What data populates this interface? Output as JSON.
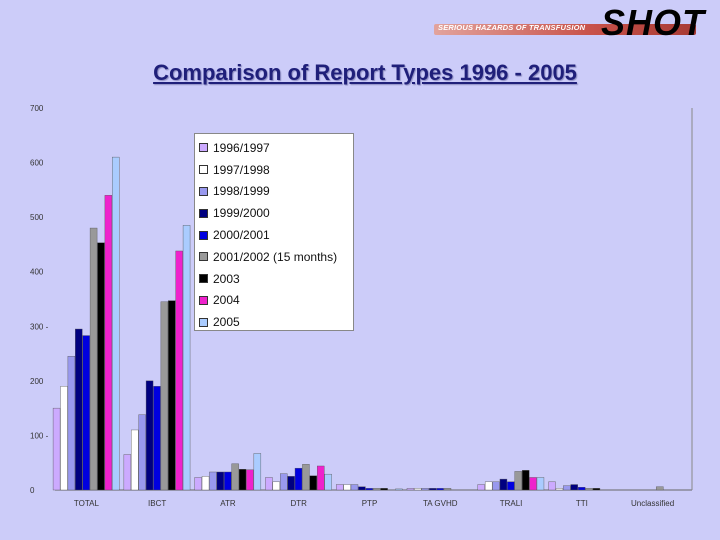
{
  "header": {
    "logo_text": "SHOT",
    "logo_tagline": "SERIOUS HAZARDS OF TRANSFUSION"
  },
  "chart_data": {
    "type": "bar",
    "title": "Comparison of Report Types 1996 - 2005",
    "xlabel": "",
    "ylabel": "",
    "ylim": [
      0,
      700
    ],
    "yticks": [
      "0",
      "100 -",
      "200",
      "300 -",
      "400",
      "500",
      "600",
      "700"
    ],
    "grid": false,
    "legend_position": "top-left",
    "categories": [
      "TOTAL",
      "IBCT",
      "ATR",
      "DTR",
      "PTP",
      "TA GVHD",
      "TRALI",
      "TTI",
      "Unclassified"
    ],
    "series": [
      {
        "name": "1996/1997",
        "color": "#ccaaff",
        "values": [
          150,
          65,
          23,
          23,
          10,
          3,
          10,
          15,
          0
        ]
      },
      {
        "name": "1997/1998",
        "color": "#ffffff",
        "values": [
          190,
          110,
          25,
          15,
          10,
          3,
          15,
          3,
          0
        ]
      },
      {
        "name": "1998/1999",
        "color": "#9999ee",
        "values": [
          245,
          138,
          33,
          30,
          10,
          3,
          15,
          8,
          0
        ]
      },
      {
        "name": "1999/2000",
        "color": "#000080",
        "values": [
          295,
          200,
          33,
          25,
          6,
          3,
          20,
          10,
          0
        ]
      },
      {
        "name": "2000/2001",
        "color": "#0000e0",
        "values": [
          283,
          190,
          33,
          40,
          3,
          3,
          15,
          5,
          0
        ]
      },
      {
        "name": "2001/2002 (15 months)",
        "color": "#999999",
        "values": [
          480,
          345,
          48,
          47,
          3,
          3,
          34,
          3,
          6
        ]
      },
      {
        "name": "2003",
        "color": "#000000",
        "values": [
          453,
          347,
          38,
          26,
          3,
          0,
          36,
          3,
          0
        ]
      },
      {
        "name": "2004",
        "color": "#ee22cc",
        "values": [
          540,
          438,
          37,
          44,
          0,
          0,
          23,
          0,
          0
        ]
      },
      {
        "name": "2005",
        "color": "#aaccff",
        "values": [
          610,
          485,
          67,
          29,
          2,
          0,
          23,
          0,
          0
        ]
      }
    ]
  }
}
